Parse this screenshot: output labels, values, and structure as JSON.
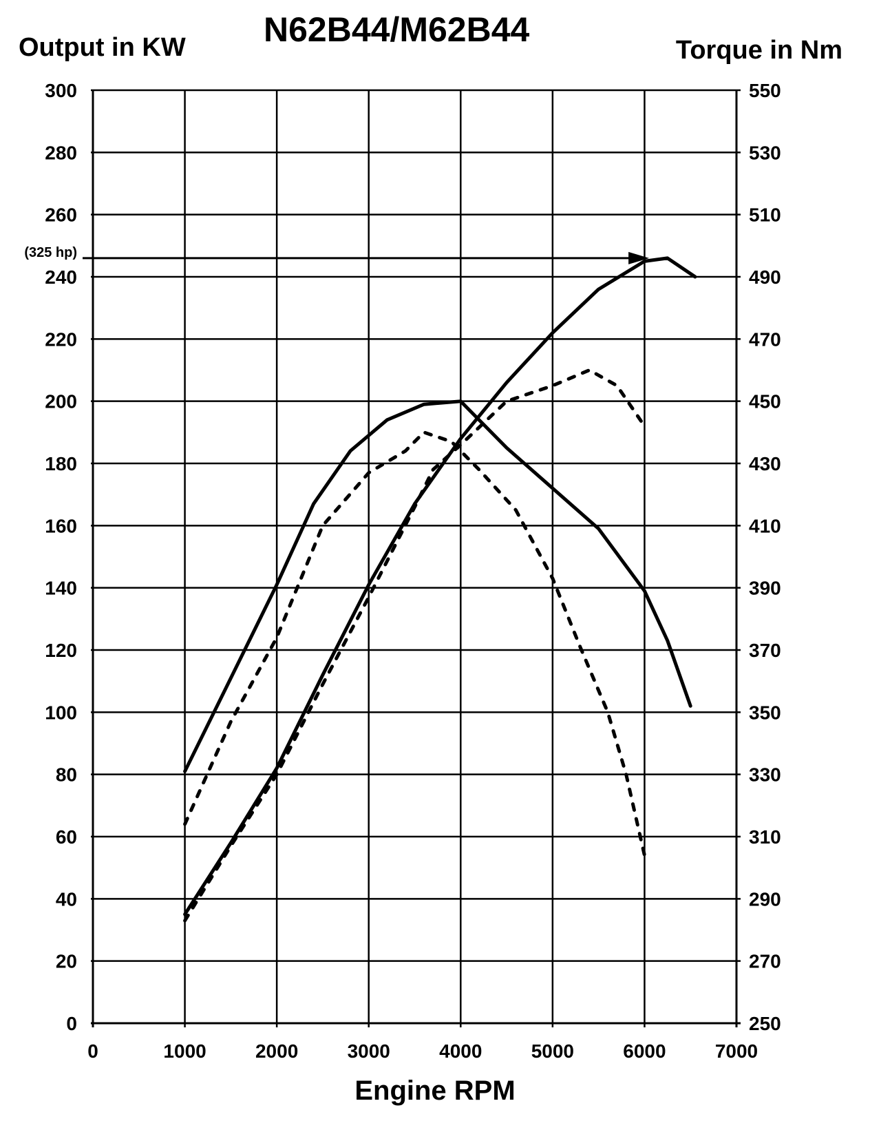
{
  "chart_data": {
    "type": "line",
    "title": "N62B44/M62B44",
    "xlabel": "Engine RPM",
    "ylabel_left": "Output in KW",
    "ylabel_right": "Torque in Nm",
    "xlim": [
      0,
      7000
    ],
    "ylim_left": [
      0,
      300
    ],
    "ylim_right": [
      250,
      550
    ],
    "x_ticks": [
      0,
      1000,
      2000,
      3000,
      4000,
      5000,
      6000,
      7000
    ],
    "y_ticks_left": [
      0,
      20,
      40,
      60,
      80,
      100,
      120,
      140,
      160,
      180,
      200,
      220,
      240,
      260,
      280,
      300
    ],
    "y_ticks_right": [
      250,
      270,
      290,
      310,
      330,
      350,
      370,
      390,
      410,
      430,
      450,
      470,
      490,
      510,
      530,
      550
    ],
    "grid": true,
    "annotation": {
      "text": "(325 hp)",
      "kw": 246
    },
    "series": [
      {
        "axis": "left",
        "style": "solid",
        "x": [
          1000,
          1500,
          2000,
          2500,
          3000,
          3500,
          4000,
          4500,
          5000,
          5500,
          6000,
          6250,
          6550
        ],
        "y": [
          35,
          58,
          82,
          112,
          141,
          167,
          188,
          206,
          222,
          236,
          245,
          246,
          240
        ]
      },
      {
        "axis": "right",
        "style": "solid",
        "x": [
          1000,
          1500,
          2000,
          2400,
          2800,
          3200,
          3600,
          4000,
          4500,
          5000,
          5500,
          5800,
          6000,
          6250,
          6500
        ],
        "y": [
          331,
          361,
          391,
          417,
          434,
          444,
          449,
          450,
          435,
          422,
          409,
          397,
          389,
          373,
          352
        ]
      },
      {
        "axis": "left",
        "style": "dashed",
        "x": [
          1000,
          1500,
          2000,
          2500,
          3000,
          3500,
          3700,
          4000,
          4500,
          5000,
          5400,
          5700,
          6000
        ],
        "y": [
          33,
          57,
          80,
          109,
          137,
          166,
          178,
          186,
          200,
          205,
          210,
          205,
          192
        ]
      },
      {
        "axis": "right",
        "style": "dashed",
        "x": [
          1000,
          1500,
          2000,
          2500,
          3000,
          3400,
          3600,
          3900,
          4200,
          4600,
          5000,
          5300,
          5600,
          5800,
          6000
        ],
        "y": [
          314,
          347,
          374,
          410,
          427,
          434,
          440,
          437,
          428,
          415,
          393,
          371,
          350,
          330,
          304
        ]
      }
    ]
  }
}
